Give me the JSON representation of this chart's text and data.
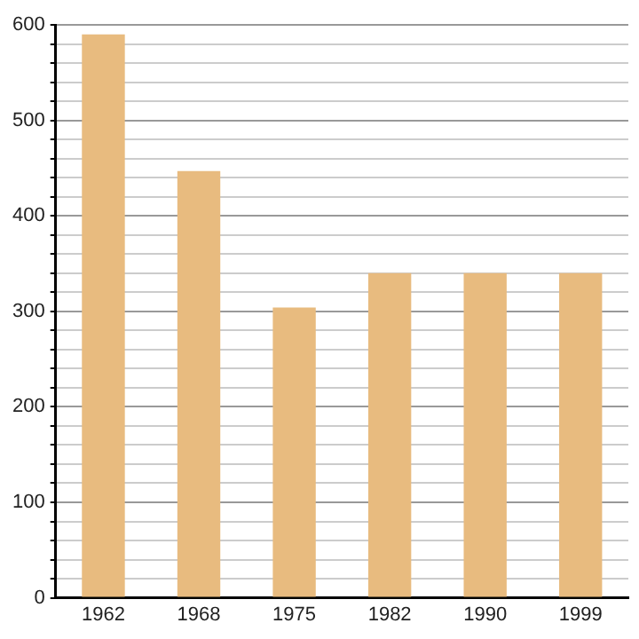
{
  "chart_data": {
    "type": "bar",
    "categories": [
      "1962",
      "1968",
      "1975",
      "1982",
      "1990",
      "1999"
    ],
    "values": [
      590,
      447,
      304,
      340,
      340,
      340
    ],
    "color": "#e8bb7f",
    "ylim": [
      0,
      600
    ],
    "yticks": [
      0,
      {
        "value": 20,
        "label": null
      },
      {
        "value": 40,
        "label": null
      },
      {
        "value": 60,
        "label": null
      },
      {
        "value": 80,
        "label": null
      },
      100,
      {
        "value": 120,
        "label": null
      },
      {
        "value": 140,
        "label": null
      },
      {
        "value": 160,
        "label": null
      },
      {
        "value": 180,
        "label": null
      },
      200,
      {
        "value": 220,
        "label": null
      },
      {
        "value": 240,
        "label": null
      },
      {
        "value": 260,
        "label": null
      },
      {
        "value": 280,
        "label": null
      },
      300,
      {
        "value": 320,
        "label": null
      },
      {
        "value": 340,
        "label": null
      },
      {
        "value": 360,
        "label": null
      },
      {
        "value": 380,
        "label": null
      },
      400,
      {
        "value": 420,
        "label": null
      },
      {
        "value": 440,
        "label": null
      },
      {
        "value": 460,
        "label": null
      },
      {
        "value": 480,
        "label": null
      },
      500,
      {
        "value": 520,
        "label": null
      },
      {
        "value": 540,
        "label": null
      },
      {
        "value": 560,
        "label": null
      },
      {
        "value": 580,
        "label": null
      },
      600
    ],
    "grid": "y",
    "legend": false
  }
}
